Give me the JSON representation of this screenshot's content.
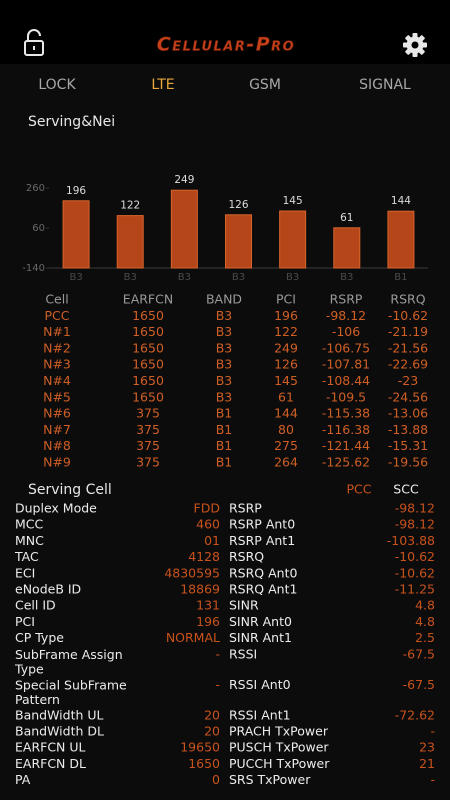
{
  "header": {
    "title": "Cellular-Pro"
  },
  "tabs": [
    "LOCK",
    "LTE",
    "GSM",
    "SIGNAL"
  ],
  "section_title": "Serving&Nei",
  "chart_data": {
    "type": "bar",
    "categories": [
      "B3",
      "B3",
      "B3",
      "B3",
      "B3",
      "B3",
      "B1"
    ],
    "values": [
      196,
      122,
      249,
      126,
      145,
      61,
      144
    ],
    "color": "#b4461a",
    "ylim": [
      -140,
      260
    ],
    "yticks": [
      260,
      60,
      -140
    ]
  },
  "cell_table": {
    "header": [
      "Cell",
      "EARFCN",
      "BAND",
      "PCI",
      "RSRP",
      "RSRQ"
    ],
    "rows": [
      [
        "PCC",
        "1650",
        "B3",
        "196",
        "-98.12",
        "-10.62"
      ],
      [
        "N#1",
        "1650",
        "B3",
        "122",
        "-106",
        "-21.19"
      ],
      [
        "N#2",
        "1650",
        "B3",
        "249",
        "-106.75",
        "-21.56"
      ],
      [
        "N#3",
        "1650",
        "B3",
        "126",
        "-107.81",
        "-22.69"
      ],
      [
        "N#4",
        "1650",
        "B3",
        "145",
        "-108.44",
        "-23"
      ],
      [
        "N#5",
        "1650",
        "B3",
        "61",
        "-109.5",
        "-24.56"
      ],
      [
        "N#6",
        "375",
        "B1",
        "144",
        "-115.38",
        "-13.06"
      ],
      [
        "N#7",
        "375",
        "B1",
        "80",
        "-116.38",
        "-13.88"
      ],
      [
        "N#8",
        "375",
        "B1",
        "275",
        "-121.44",
        "-15.31"
      ],
      [
        "N#9",
        "375",
        "B1",
        "264",
        "-125.62",
        "-19.56"
      ]
    ]
  },
  "serving_cell": {
    "title": "Serving Cell",
    "columns": [
      "PCC",
      "SCC"
    ],
    "left": [
      {
        "label": "Duplex Mode",
        "value": "FDD"
      },
      {
        "label": "MCC",
        "value": "460"
      },
      {
        "label": "MNC",
        "value": "01"
      },
      {
        "label": "TAC",
        "value": "4128"
      },
      {
        "label": "ECI",
        "value": "4830595"
      },
      {
        "label": "eNodeB ID",
        "value": "18869"
      },
      {
        "label": "Cell ID",
        "value": "131"
      },
      {
        "label": "PCI",
        "value": "196"
      },
      {
        "label": "CP Type",
        "value": "NORMAL"
      },
      {
        "label": "SubFrame Assign Type",
        "value": "-"
      },
      {
        "label": "Special SubFrame Pattern",
        "value": "-"
      },
      {
        "label": "BandWidth UL",
        "value": "20"
      },
      {
        "label": "BandWidth DL",
        "value": "20"
      },
      {
        "label": "EARFCN UL",
        "value": "19650"
      },
      {
        "label": "EARFCN DL",
        "value": "1650"
      },
      {
        "label": "PA",
        "value": "0"
      }
    ],
    "right": [
      {
        "label": "RSRP",
        "value": "-98.12"
      },
      {
        "label": "RSRP Ant0",
        "value": "-98.12"
      },
      {
        "label": "RSRP Ant1",
        "value": "-103.88"
      },
      {
        "label": "RSRQ",
        "value": "-10.62"
      },
      {
        "label": "RSRQ Ant0",
        "value": "-10.62"
      },
      {
        "label": "RSRQ Ant1",
        "value": "-11.25"
      },
      {
        "label": "SINR",
        "value": "4.8"
      },
      {
        "label": "SINR Ant0",
        "value": "4.8"
      },
      {
        "label": "SINR Ant1",
        "value": "2.5"
      },
      {
        "label": "RSSI",
        "value": "-67.5"
      },
      {
        "label": "RSSI Ant0",
        "value": "-67.5"
      },
      {
        "label": "RSSI Ant1",
        "value": "-72.62"
      },
      {
        "label": "PRACH TxPower",
        "value": "-"
      },
      {
        "label": "PUSCH TxPower",
        "value": "23"
      },
      {
        "label": "PUCCH TxPower",
        "value": "21"
      },
      {
        "label": "SRS TxPower",
        "value": "-"
      }
    ]
  }
}
